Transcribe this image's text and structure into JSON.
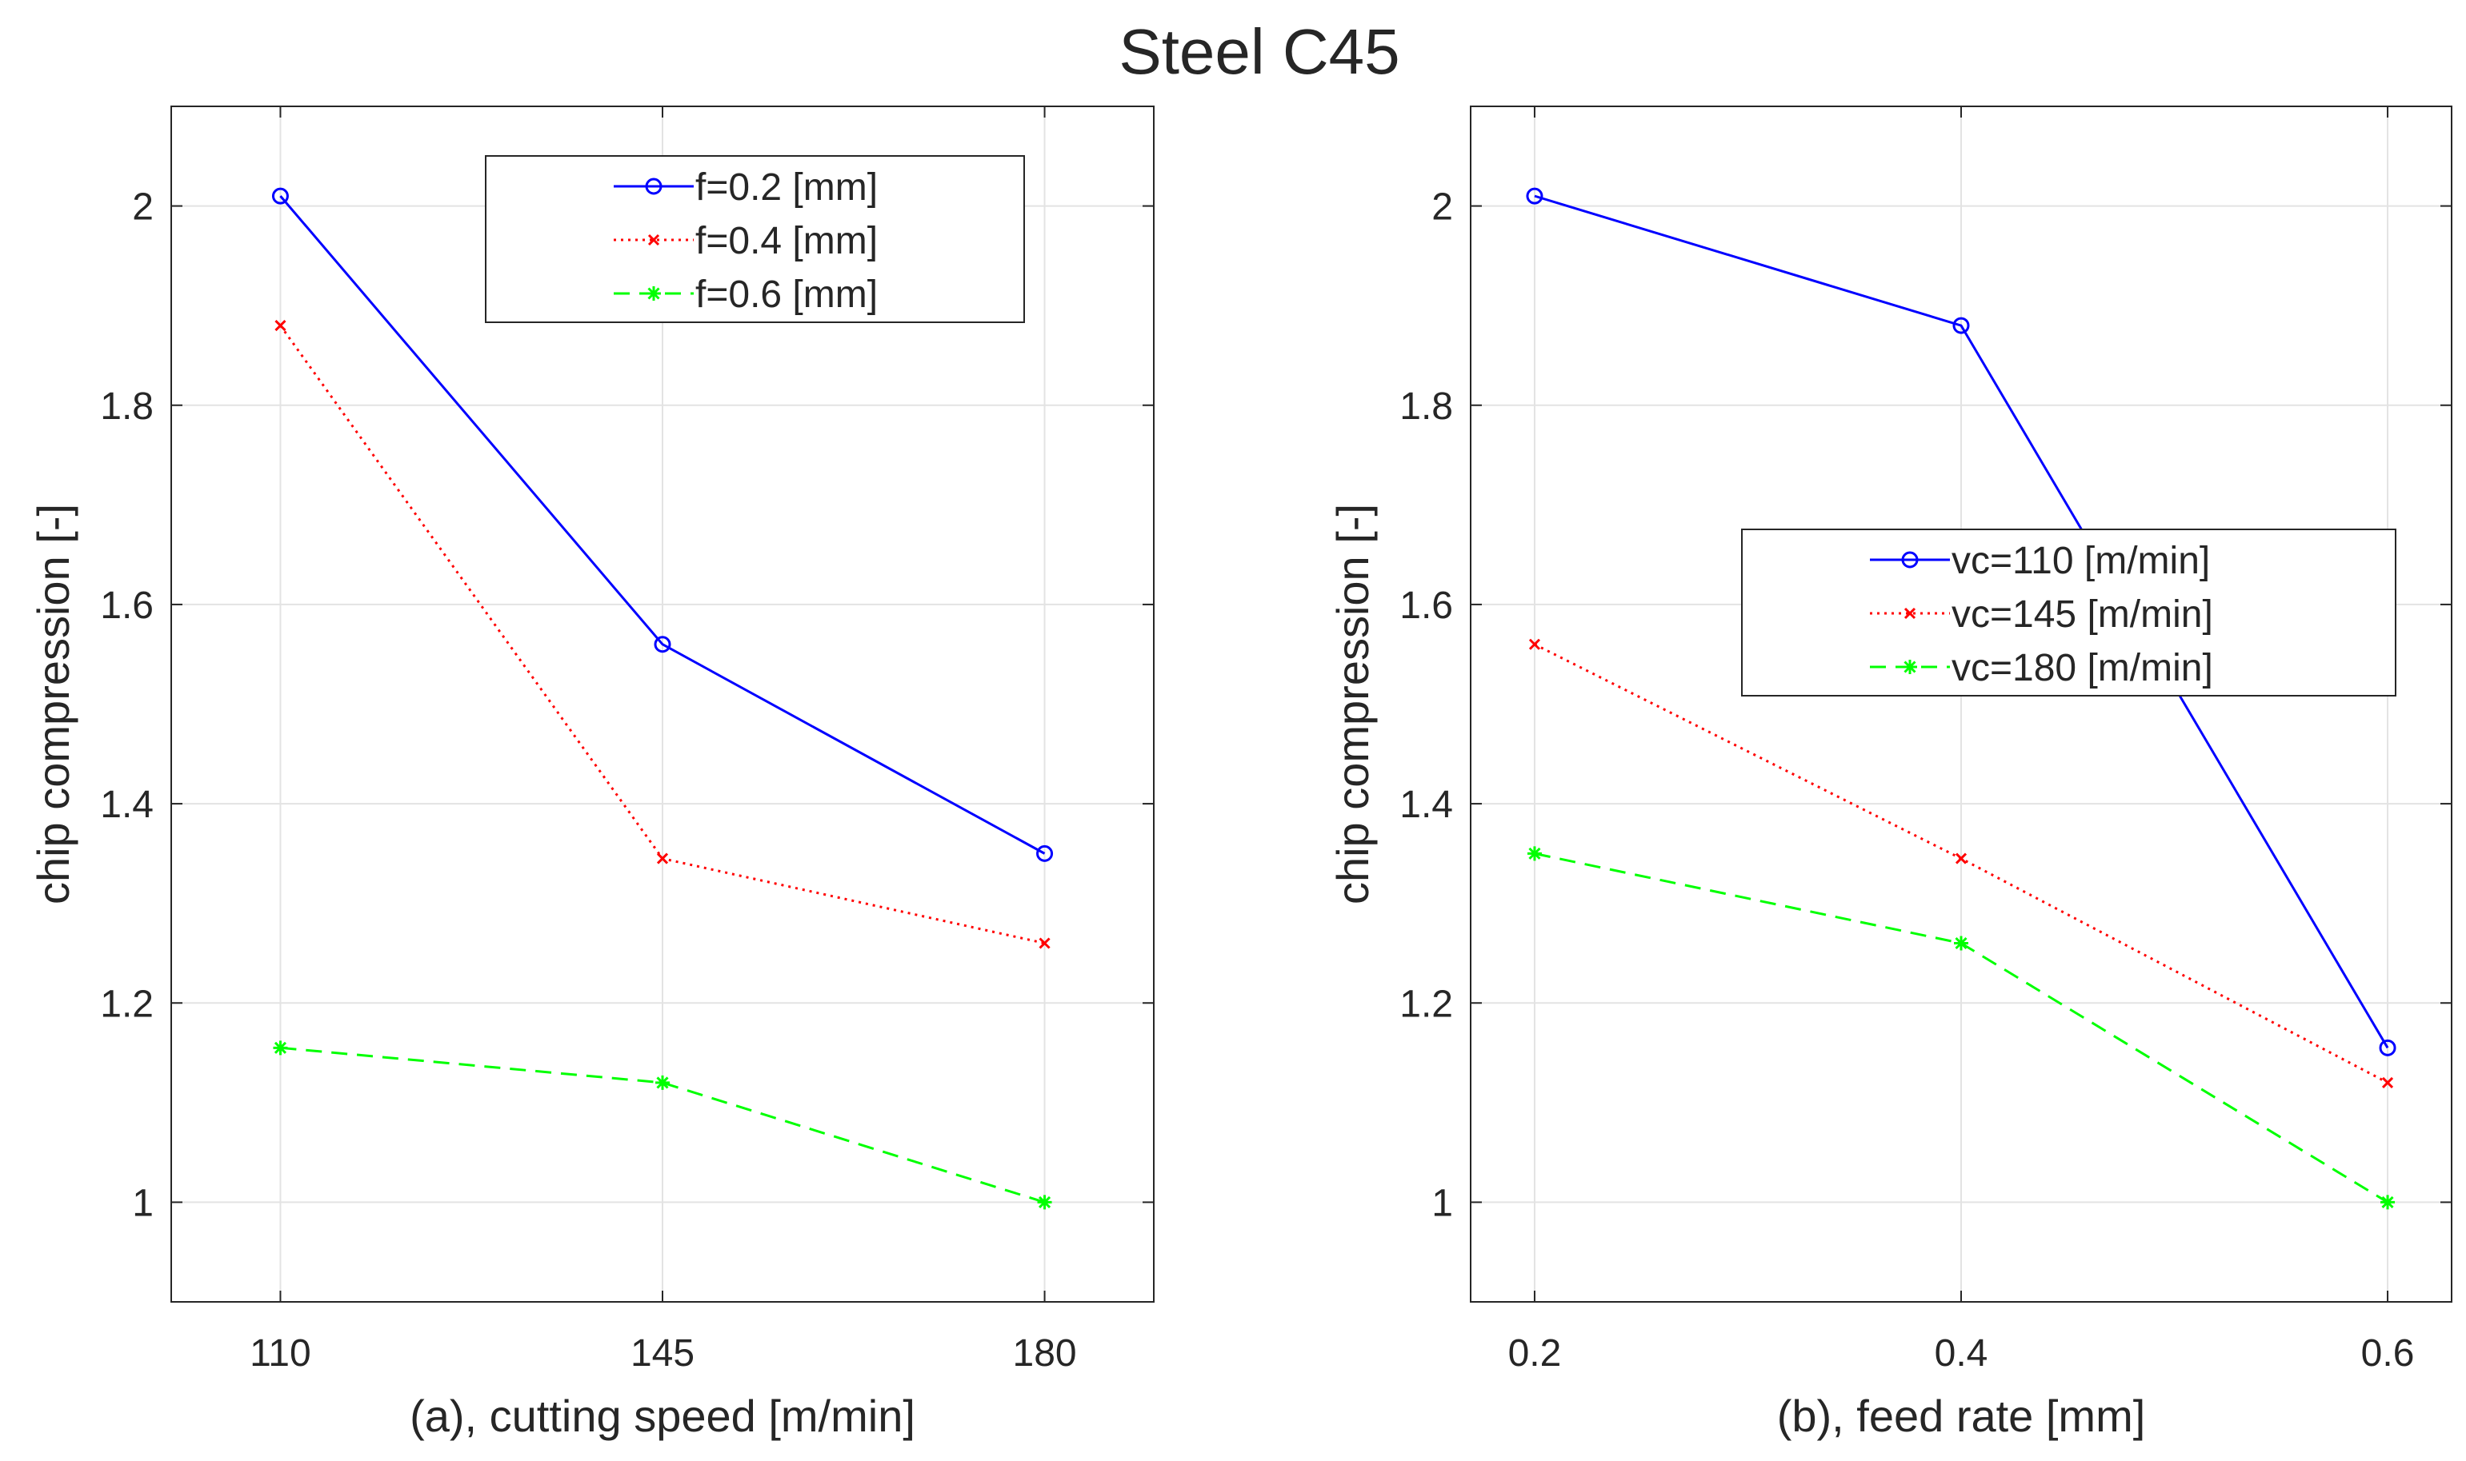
{
  "figure": {
    "title": "Steel C45"
  },
  "chart_data": [
    {
      "type": "line",
      "xlabel": "(a), cutting speed [m/min]",
      "ylabel": "chip compression [-]",
      "x": [
        110,
        145,
        180
      ],
      "xticks": [
        "110",
        "145",
        "180"
      ],
      "xlim": [
        100,
        190
      ],
      "ylim": [
        0.9,
        2.1
      ],
      "yticks": [
        "1",
        "1.2",
        "1.4",
        "1.6",
        "1.8",
        "2"
      ],
      "ytick_values": [
        1,
        1.2,
        1.4,
        1.6,
        1.8,
        2
      ],
      "grid": true,
      "legend_position": "top-right",
      "series": [
        {
          "name": "f=0.2 [mm]",
          "values": [
            2.01,
            1.56,
            1.35
          ],
          "color": "#0000ff",
          "dash": "solid",
          "marker": "circle"
        },
        {
          "name": "f=0.4 [mm]",
          "values": [
            1.88,
            1.345,
            1.26
          ],
          "color": "#ff0000",
          "dash": "dotted",
          "marker": "x"
        },
        {
          "name": "f=0.6 [mm]",
          "values": [
            1.155,
            1.12,
            1.0
          ],
          "color": "#00ff00",
          "dash": "dashed",
          "marker": "star"
        }
      ]
    },
    {
      "type": "line",
      "xlabel": "(b), feed rate [mm]",
      "ylabel": "chip compression [-]",
      "x": [
        0.2,
        0.4,
        0.6
      ],
      "xticks": [
        "0.2",
        "0.4",
        "0.6"
      ],
      "xlim": [
        0.17,
        0.63
      ],
      "ylim": [
        0.9,
        2.1
      ],
      "yticks": [
        "1",
        "1.2",
        "1.4",
        "1.6",
        "1.8",
        "2"
      ],
      "ytick_values": [
        1,
        1.2,
        1.4,
        1.6,
        1.8,
        2
      ],
      "grid": true,
      "legend_position": "center-right",
      "series": [
        {
          "name": "vc=110 [m/min]",
          "values": [
            2.01,
            1.88,
            1.155
          ],
          "color": "#0000ff",
          "dash": "solid",
          "marker": "circle"
        },
        {
          "name": "vc=145 [m/min]",
          "values": [
            1.56,
            1.345,
            1.12
          ],
          "color": "#ff0000",
          "dash": "dotted",
          "marker": "x"
        },
        {
          "name": "vc=180 [m/min]",
          "values": [
            1.35,
            1.26,
            1.0
          ],
          "color": "#00ff00",
          "dash": "dashed",
          "marker": "star"
        }
      ]
    }
  ]
}
